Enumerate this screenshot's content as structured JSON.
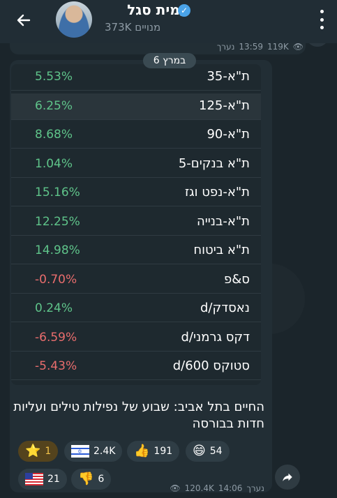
{
  "header": {
    "channel_name": "עמית סגל",
    "subscribers": "373K מנויים",
    "back_icon": "arrow-left-icon",
    "menu_icon": "kebab-menu-icon",
    "verified_icon": "verified-badge-icon"
  },
  "prev_message": {
    "views": "119K",
    "time": "13:59",
    "edited": "נערך"
  },
  "date_chip": "6 במרץ",
  "table": {
    "rows": [
      {
        "label": "ת\"א-35",
        "pct": "5.53%"
      },
      {
        "label": "ת\"א-125",
        "pct": "6.25%"
      },
      {
        "label": "ת\"א-90",
        "pct": "8.68%"
      },
      {
        "label": "ת\"א בנקים-5",
        "pct": "1.04%"
      },
      {
        "label": "ת\"א-נפט וגז",
        "pct": "15.16%"
      },
      {
        "label": "ת\"א-בנייה",
        "pct": "12.25%"
      },
      {
        "label": "ת\"א ביטוח",
        "pct": "14.98%"
      },
      {
        "label": "ס&פ",
        "pct": "-0.70%"
      },
      {
        "label": "נאסדק/d",
        "pct": "0.24%"
      },
      {
        "label": "דקס גרמני/d",
        "pct": "-6.59%"
      },
      {
        "label": "סטוקס d/600",
        "pct": "-5.43%"
      }
    ]
  },
  "caption": "החיים בתל אביב: שבוע של נפילות טילים ועליות חדות בבורסה",
  "reactions": {
    "star": {
      "count": "1"
    },
    "flag_il": {
      "count": "2.4K"
    },
    "thumbs_up": {
      "count": "191"
    },
    "grin": {
      "count": "54"
    },
    "flag_us": {
      "count": "21"
    },
    "thumbs_down": {
      "count": "6"
    }
  },
  "message": {
    "views": "120.4K",
    "time": "14:06",
    "edited": "נערך",
    "share_icon": "share-arrow-icon"
  },
  "colors": {
    "positive": "#5fc48a",
    "negative": "#e96d6d",
    "bubble": "#222e35",
    "header": "#212d35"
  }
}
